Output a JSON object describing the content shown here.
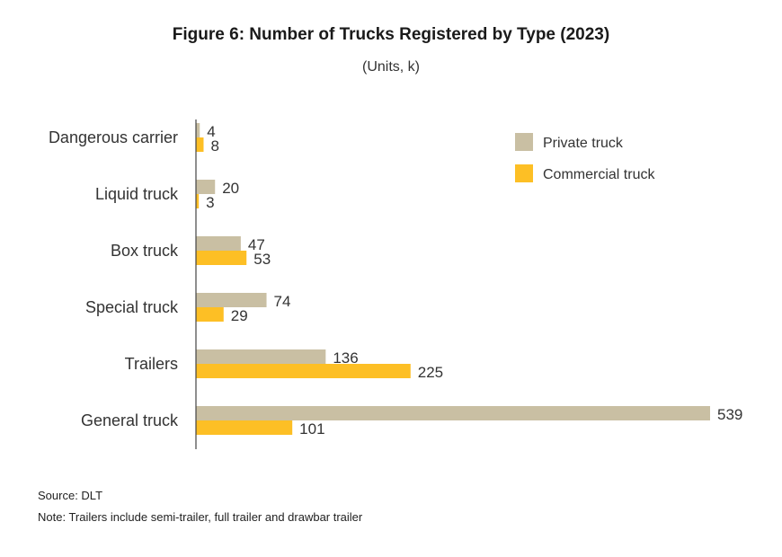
{
  "chart_data": {
    "type": "bar",
    "orientation": "horizontal",
    "title": "Figure 6: Number of Trucks Registered by Type (2023)",
    "subtitle": "(Units, k)",
    "categories": [
      "Dangerous carrier",
      "Liquid  truck",
      "Box truck",
      "Special truck",
      "Trailers",
      "General truck"
    ],
    "series": [
      {
        "name": "Private truck",
        "color": "#c9bfa3",
        "values": [
          4,
          20,
          47,
          74,
          136,
          539
        ]
      },
      {
        "name": "Commercial truck",
        "color": "#fdbf25",
        "values": [
          8,
          3,
          53,
          29,
          225,
          101
        ]
      }
    ],
    "xlim": [
      0,
      539
    ],
    "grid": false,
    "legend_position": "top-right"
  },
  "footer": {
    "source": "Source: DLT",
    "note": "Note: Trailers include semi-trailer, full trailer and drawbar trailer"
  }
}
